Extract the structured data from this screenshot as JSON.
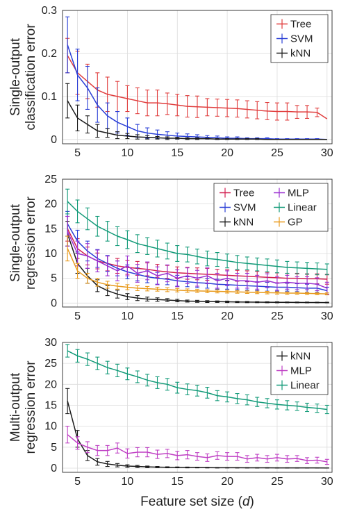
{
  "chart_data": [
    {
      "type": "line",
      "ylabel": [
        "Single-output",
        "classification error"
      ],
      "xlabel": "",
      "xlim": [
        3.5,
        30.5
      ],
      "ylim": [
        -0.01,
        0.3
      ],
      "xticks": [
        5,
        10,
        15,
        20,
        25,
        30
      ],
      "xtick_labels": [
        "5",
        "10",
        "15",
        "20",
        "25",
        "30"
      ],
      "yticks": [
        0,
        0.1,
        0.2,
        0.3
      ],
      "ytick_labels": [
        "0",
        "0.1",
        "0.2",
        "0.3"
      ],
      "grid": true,
      "error_bars": true,
      "legend": {
        "placement": "top-right",
        "columns": 1
      },
      "x": [
        4,
        5,
        6,
        7,
        8,
        9,
        10,
        11,
        12,
        13,
        14,
        15,
        16,
        17,
        18,
        19,
        20,
        21,
        22,
        23,
        24,
        25,
        26,
        27,
        28,
        29,
        30
      ],
      "series": [
        {
          "name": "Tree",
          "color": "#e03c3c",
          "values": [
            0.195,
            0.155,
            0.135,
            0.115,
            0.105,
            0.1,
            0.095,
            0.09,
            0.085,
            0.085,
            0.083,
            0.08,
            0.077,
            0.076,
            0.075,
            0.074,
            0.073,
            0.072,
            0.07,
            0.068,
            0.066,
            0.065,
            0.065,
            0.064,
            0.064,
            0.063,
            0.048
          ],
          "errors": [
            0.04,
            0.05,
            0.04,
            0.04,
            0.04,
            0.035,
            0.03,
            0.03,
            0.03,
            0.03,
            0.025,
            0.025,
            0.025,
            0.025,
            0.02,
            0.02,
            0.02,
            0.02,
            0.02,
            0.02,
            0.02,
            0.02,
            0.02,
            0.015,
            0.015,
            0.01,
            0.0
          ]
        },
        {
          "name": "SVM",
          "color": "#2a3fd6",
          "values": [
            0.22,
            0.15,
            0.12,
            0.08,
            0.055,
            0.04,
            0.03,
            0.02,
            0.015,
            0.012,
            0.01,
            0.008,
            0.007,
            0.006,
            0.005,
            0.004,
            0.003,
            0.003,
            0.002,
            0.002,
            0.002,
            0.001,
            0.001,
            0.001,
            0.001,
            0.001,
            0.0
          ],
          "errors": [
            0.065,
            0.06,
            0.05,
            0.04,
            0.03,
            0.025,
            0.02,
            0.015,
            0.012,
            0.01,
            0.008,
            0.007,
            0.006,
            0.005,
            0.004,
            0.004,
            0.003,
            0.003,
            0.002,
            0.002,
            0.002,
            0.001,
            0.001,
            0.001,
            0.001,
            0.001,
            0.0
          ]
        },
        {
          "name": "kNN",
          "color": "#1a1a1a",
          "values": [
            0.09,
            0.05,
            0.035,
            0.02,
            0.015,
            0.01,
            0.008,
            0.006,
            0.005,
            0.004,
            0.003,
            0.003,
            0.002,
            0.002,
            0.002,
            0.001,
            0.001,
            0.001,
            0.001,
            0.001,
            0.0,
            0.0,
            0.0,
            0.0,
            0.0,
            0.0,
            0.0
          ],
          "errors": [
            0.04,
            0.03,
            0.02,
            0.015,
            0.01,
            0.008,
            0.006,
            0.005,
            0.004,
            0.003,
            0.003,
            0.002,
            0.002,
            0.002,
            0.001,
            0.001,
            0.001,
            0.001,
            0.001,
            0.001,
            0.0,
            0.0,
            0.0,
            0.0,
            0.0,
            0.0,
            0.0
          ]
        }
      ]
    },
    {
      "type": "line",
      "ylabel": [
        "Single-output",
        "regression error"
      ],
      "xlabel": "",
      "xlim": [
        3.5,
        30.5
      ],
      "ylim": [
        -0.8,
        25
      ],
      "xticks": [
        5,
        10,
        15,
        20,
        25,
        30
      ],
      "xtick_labels": [
        "5",
        "10",
        "15",
        "20",
        "25",
        "30"
      ],
      "yticks": [
        0,
        5,
        10,
        15,
        20,
        25
      ],
      "ytick_labels": [
        "0",
        "5",
        "10",
        "15",
        "20",
        "25"
      ],
      "grid": true,
      "error_bars": true,
      "legend": {
        "placement": "top-right",
        "columns": 2
      },
      "x": [
        4,
        5,
        6,
        7,
        8,
        9,
        10,
        11,
        12,
        13,
        14,
        15,
        16,
        17,
        18,
        19,
        20,
        21,
        22,
        23,
        24,
        25,
        26,
        27,
        28,
        29,
        30
      ],
      "series": [
        {
          "name": "Tree",
          "color": "#d21f4f",
          "values": [
            15.0,
            11.0,
            9.5,
            8.5,
            8.0,
            7.5,
            7.2,
            7.0,
            6.8,
            6.5,
            6.3,
            6.1,
            6.0,
            5.9,
            5.8,
            5.7,
            5.6,
            5.5,
            5.4,
            5.3,
            5.2,
            5.1,
            5.0,
            5.0,
            4.9,
            4.9,
            4.8
          ],
          "errors": [
            2.5,
            2.0,
            1.8,
            1.6,
            1.5,
            1.5,
            1.4,
            1.4,
            1.3,
            1.3,
            1.3,
            1.2,
            1.2,
            1.2,
            1.2,
            1.1,
            1.1,
            1.1,
            1.1,
            1.1,
            1.0,
            1.0,
            1.0,
            1.0,
            1.0,
            1.0,
            1.0
          ]
        },
        {
          "name": "SVM",
          "color": "#2a3fd6",
          "values": [
            16.0,
            12.5,
            10.5,
            9.0,
            8.0,
            7.0,
            6.3,
            5.8,
            5.3,
            5.0,
            4.8,
            4.5,
            4.3,
            4.1,
            4.0,
            3.8,
            3.7,
            3.6,
            3.5,
            3.4,
            3.3,
            3.2,
            3.2,
            3.1,
            3.0,
            3.0,
            2.5
          ],
          "errors": [
            2.5,
            2.2,
            2.0,
            1.8,
            1.6,
            1.5,
            1.4,
            1.3,
            1.2,
            1.2,
            1.1,
            1.1,
            1.0,
            1.0,
            1.0,
            1.0,
            0.9,
            0.9,
            0.9,
            0.9,
            0.9,
            0.8,
            0.8,
            0.8,
            0.8,
            0.8,
            0.7
          ]
        },
        {
          "name": "kNN",
          "color": "#1a1a1a",
          "values": [
            14.0,
            8.0,
            5.5,
            3.5,
            2.5,
            1.8,
            1.3,
            1.0,
            0.8,
            0.7,
            0.6,
            0.5,
            0.4,
            0.35,
            0.3,
            0.28,
            0.25,
            0.22,
            0.2,
            0.18,
            0.16,
            0.15,
            0.14,
            0.13,
            0.12,
            0.11,
            0.1
          ],
          "errors": [
            2.5,
            2.0,
            1.5,
            1.2,
            1.0,
            0.8,
            0.6,
            0.5,
            0.4,
            0.35,
            0.3,
            0.25,
            0.2,
            0.2,
            0.18,
            0.15,
            0.15,
            0.12,
            0.12,
            0.1,
            0.1,
            0.1,
            0.08,
            0.08,
            0.08,
            0.07,
            0.07
          ]
        },
        {
          "name": "MLP",
          "color": "#9a2fd0",
          "values": [
            14.5,
            10.0,
            9.5,
            8.5,
            7.5,
            6.5,
            7.5,
            6.0,
            6.5,
            5.5,
            6.0,
            5.0,
            5.5,
            5.0,
            5.5,
            4.5,
            5.0,
            4.5,
            4.5,
            4.2,
            4.5,
            4.0,
            4.2,
            4.0,
            4.0,
            3.8,
            3.0
          ],
          "errors": [
            3.0,
            2.5,
            2.5,
            2.2,
            2.0,
            2.0,
            2.0,
            1.8,
            1.8,
            1.8,
            1.7,
            1.7,
            1.6,
            1.6,
            1.6,
            1.5,
            1.5,
            1.5,
            1.5,
            1.4,
            1.4,
            1.4,
            1.4,
            1.3,
            1.3,
            1.3,
            1.2
          ]
        },
        {
          "name": "Linear",
          "color": "#129a78",
          "values": [
            20.5,
            18.5,
            17.0,
            15.5,
            14.5,
            13.5,
            12.8,
            12.0,
            11.5,
            11.0,
            10.5,
            10.0,
            9.8,
            9.4,
            9.0,
            8.8,
            8.5,
            8.2,
            8.0,
            7.8,
            7.6,
            7.4,
            7.2,
            7.1,
            7.0,
            6.9,
            6.8
          ],
          "errors": [
            2.5,
            2.3,
            2.2,
            2.0,
            2.0,
            1.9,
            1.8,
            1.8,
            1.7,
            1.7,
            1.6,
            1.6,
            1.5,
            1.5,
            1.5,
            1.4,
            1.4,
            1.4,
            1.3,
            1.3,
            1.3,
            1.3,
            1.2,
            1.2,
            1.2,
            1.2,
            1.1
          ]
        },
        {
          "name": "GP",
          "color": "#e89a1c",
          "values": [
            11.0,
            6.5,
            5.0,
            4.2,
            3.7,
            3.4,
            3.2,
            3.0,
            2.9,
            2.8,
            2.7,
            2.6,
            2.5,
            2.45,
            2.4,
            2.35,
            2.3,
            2.25,
            2.2,
            2.15,
            2.1,
            2.05,
            2.0,
            2.0,
            1.95,
            1.9,
            1.85
          ],
          "errors": [
            2.5,
            1.5,
            1.0,
            0.8,
            0.7,
            0.6,
            0.5,
            0.5,
            0.45,
            0.4,
            0.4,
            0.35,
            0.35,
            0.3,
            0.3,
            0.3,
            0.28,
            0.27,
            0.26,
            0.25,
            0.25,
            0.24,
            0.23,
            0.22,
            0.22,
            0.21,
            0.2
          ]
        }
      ]
    },
    {
      "type": "line",
      "ylabel": [
        "Multi-output",
        "regression error"
      ],
      "xlabel": "Feature set size (d)",
      "xlim": [
        3.5,
        30.5
      ],
      "ylim": [
        -1,
        30
      ],
      "xticks": [
        5,
        10,
        15,
        20,
        25,
        30
      ],
      "xtick_labels": [
        "5",
        "10",
        "15",
        "20",
        "25",
        "30"
      ],
      "yticks": [
        0,
        5,
        10,
        15,
        20,
        25,
        30
      ],
      "ytick_labels": [
        "0",
        "5",
        "10",
        "15",
        "20",
        "25",
        "30"
      ],
      "grid": true,
      "error_bars": true,
      "legend": {
        "placement": "top-right",
        "columns": 1
      },
      "x": [
        4,
        5,
        6,
        7,
        8,
        9,
        10,
        11,
        12,
        13,
        14,
        15,
        16,
        17,
        18,
        19,
        20,
        21,
        22,
        23,
        24,
        25,
        26,
        27,
        28,
        29,
        30
      ],
      "series": [
        {
          "name": "kNN",
          "color": "#1a1a1a",
          "values": [
            16.0,
            7.0,
            3.0,
            1.5,
            1.0,
            0.7,
            0.5,
            0.4,
            0.3,
            0.25,
            0.2,
            0.18,
            0.16,
            0.14,
            0.12,
            0.1,
            0.1,
            0.09,
            0.08,
            0.07,
            0.07,
            0.06,
            0.06,
            0.05,
            0.05,
            0.05,
            0.04
          ],
          "errors": [
            3.0,
            2.0,
            1.2,
            0.8,
            0.6,
            0.4,
            0.3,
            0.25,
            0.2,
            0.15,
            0.12,
            0.1,
            0.1,
            0.08,
            0.08,
            0.07,
            0.06,
            0.06,
            0.05,
            0.05,
            0.05,
            0.04,
            0.04,
            0.04,
            0.03,
            0.03,
            0.03
          ]
        },
        {
          "name": "MLP",
          "color": "#bf3fc4",
          "values": [
            8.0,
            6.0,
            5.0,
            4.2,
            4.2,
            4.8,
            3.5,
            3.8,
            3.8,
            3.3,
            3.5,
            3.0,
            3.2,
            2.8,
            2.5,
            3.0,
            2.8,
            2.8,
            2.2,
            2.5,
            2.2,
            2.5,
            2.2,
            2.3,
            1.8,
            1.9,
            1.5
          ],
          "errors": [
            2.0,
            1.5,
            1.3,
            1.2,
            1.2,
            1.2,
            1.1,
            1.1,
            1.1,
            1.0,
            1.0,
            1.0,
            1.0,
            0.9,
            0.9,
            0.9,
            0.9,
            0.9,
            0.8,
            0.8,
            0.8,
            0.8,
            0.8,
            0.7,
            0.7,
            0.7,
            0.6
          ]
        },
        {
          "name": "Linear",
          "color": "#129a78",
          "values": [
            28.0,
            26.8,
            26.0,
            25.0,
            24.0,
            23.3,
            22.5,
            21.8,
            21.0,
            20.4,
            20.0,
            19.2,
            18.8,
            18.5,
            18.0,
            17.3,
            17.0,
            16.6,
            16.3,
            15.8,
            15.5,
            15.2,
            15.0,
            14.8,
            14.5,
            14.3,
            14.0
          ],
          "errors": [
            1.5,
            1.5,
            1.5,
            1.5,
            1.5,
            1.5,
            1.4,
            1.4,
            1.4,
            1.4,
            1.4,
            1.3,
            1.3,
            1.3,
            1.3,
            1.2,
            1.2,
            1.2,
            1.2,
            1.1,
            1.1,
            1.1,
            1.1,
            1.0,
            1.0,
            1.0,
            1.0
          ]
        }
      ]
    }
  ]
}
